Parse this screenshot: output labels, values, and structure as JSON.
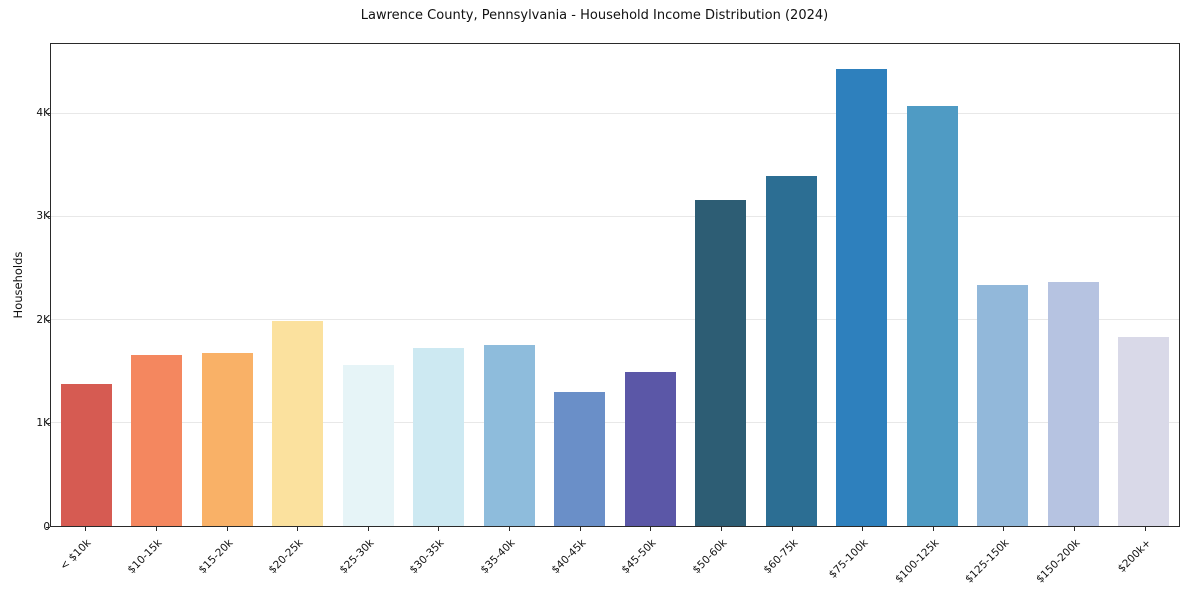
{
  "chart_data": {
    "type": "bar",
    "title": "Lawrence County, Pennsylvania - Household Income Distribution (2024)",
    "xlabel": "",
    "ylabel": "Households",
    "ylim": [
      0,
      4676
    ],
    "grid": true,
    "legend": "none",
    "categories": [
      "< $10k",
      "$10-15k",
      "$15-20k",
      "$20-25k",
      "$25-30k",
      "$30-35k",
      "$35-40k",
      "$40-45k",
      "$45-50k",
      "$50-60k",
      "$60-75k",
      "$75-100k",
      "$100-125k",
      "$125-150k",
      "$150-200k",
      "$200k+"
    ],
    "values": [
      1375,
      1660,
      1680,
      1990,
      1565,
      1730,
      1755,
      1300,
      1490,
      3165,
      3400,
      4430,
      4070,
      2335,
      2365,
      1835
    ],
    "bar_colors": [
      "#d65b52",
      "#f4875f",
      "#f9b167",
      "#fbe19e",
      "#e6f4f7",
      "#cde9f2",
      "#8ebcdc",
      "#6a8fc8",
      "#5b57a7",
      "#2d5d74",
      "#2c6e93",
      "#2e80bd",
      "#4f9bc4",
      "#92b8da",
      "#b6c3e1",
      "#d9d9e8"
    ],
    "yticks": [
      {
        "value": 0,
        "label": "0"
      },
      {
        "value": 1000,
        "label": "1K"
      },
      {
        "value": 2000,
        "label": "2K"
      },
      {
        "value": 3000,
        "label": "3K"
      },
      {
        "value": 4000,
        "label": "4K"
      }
    ],
    "gridline_color": "#e8e8e8",
    "axis_color": "#2a2a2a",
    "background_color": "#ffffff"
  }
}
